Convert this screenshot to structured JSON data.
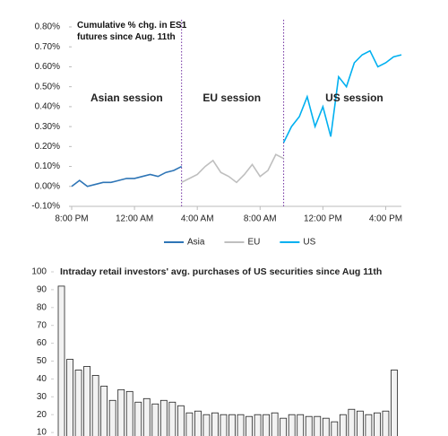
{
  "chart_data": [
    {
      "type": "line",
      "title": "Cumulative % chg. in ES1 futures since Aug. 11th",
      "xlim": [
        0,
        21
      ],
      "xticks": [
        {
          "value": 0,
          "label": "8:00 PM"
        },
        {
          "value": 4,
          "label": "12:00 AM"
        },
        {
          "value": 8,
          "label": "4:00 AM"
        },
        {
          "value": 12,
          "label": "8:00 AM"
        },
        {
          "value": 16,
          "label": "12:00 PM"
        },
        {
          "value": 20,
          "label": "4:00 PM"
        }
      ],
      "ylim": [
        -0.1,
        0.8
      ],
      "yticks": [
        {
          "value": -0.1,
          "label": "-0.10%"
        },
        {
          "value": 0,
          "label": "0.00%"
        },
        {
          "value": 0.1,
          "label": "0.10%"
        },
        {
          "value": 0.2,
          "label": "0.20%"
        },
        {
          "value": 0.3,
          "label": "0.30%"
        },
        {
          "value": 0.4,
          "label": "0.40%"
        },
        {
          "value": 0.5,
          "label": "0.50%"
        },
        {
          "value": 0.6,
          "label": "0.60%"
        },
        {
          "value": 0.7,
          "label": "0.70%"
        },
        {
          "value": 0.8,
          "label": "0.80%"
        }
      ],
      "grid": false,
      "vlines": [
        7,
        13.5
      ],
      "vline_color": "#7030a0",
      "annotations": [
        {
          "text": "Asian session",
          "x": 3.5,
          "y": 0.44,
          "color": "#2e75b6"
        },
        {
          "text": "EU session",
          "x": 10.2,
          "y": 0.44,
          "color": "#bfbfbf"
        },
        {
          "text": "US session",
          "x": 18,
          "y": 0.44,
          "color": "#00b0f0"
        }
      ],
      "legend": "bottom",
      "series": [
        {
          "name": "Asia",
          "color": "#2e75b6",
          "x": [
            0,
            0.5,
            1,
            1.5,
            2,
            2.5,
            3,
            3.5,
            4,
            4.5,
            5,
            5.5,
            6,
            6.5,
            7
          ],
          "values": [
            0.0,
            0.03,
            0.0,
            0.01,
            0.02,
            0.02,
            0.03,
            0.04,
            0.04,
            0.05,
            0.06,
            0.05,
            0.07,
            0.08,
            0.1
          ]
        },
        {
          "name": "EU",
          "color": "#bfbfbf",
          "x": [
            7,
            7.5,
            8,
            8.5,
            9,
            9.5,
            10,
            10.5,
            11,
            11.5,
            12,
            12.5,
            13,
            13.5
          ],
          "values": [
            0.02,
            0.04,
            0.06,
            0.1,
            0.13,
            0.07,
            0.05,
            0.02,
            0.06,
            0.11,
            0.05,
            0.08,
            0.16,
            0.14
          ]
        },
        {
          "name": "US",
          "color": "#00b0f0",
          "x": [
            13.5,
            14,
            14.5,
            15,
            15.5,
            16,
            16.5,
            17,
            17.5,
            18,
            18.5,
            19,
            19.5,
            20,
            20.5,
            21
          ],
          "values": [
            0.22,
            0.3,
            0.35,
            0.45,
            0.3,
            0.4,
            0.25,
            0.55,
            0.5,
            0.62,
            0.66,
            0.68,
            0.6,
            0.62,
            0.65,
            0.66
          ]
        }
      ]
    },
    {
      "type": "bar",
      "title": "Intraday retail investors' avg. purchases of US securities since Aug 11th",
      "ylim": [
        0,
        100
      ],
      "yticks": [
        10,
        20,
        30,
        40,
        50,
        60,
        70,
        80,
        90,
        100
      ],
      "color": "#f2f2f2",
      "values": [
        92,
        51,
        45,
        47,
        42,
        36,
        28,
        34,
        33,
        27,
        29,
        26,
        28,
        27,
        25,
        21,
        22,
        20,
        21,
        20,
        20,
        20,
        19,
        20,
        20,
        21,
        18,
        20,
        20,
        19,
        19,
        18,
        16,
        20,
        23,
        22,
        20,
        21,
        22,
        45
      ]
    }
  ]
}
